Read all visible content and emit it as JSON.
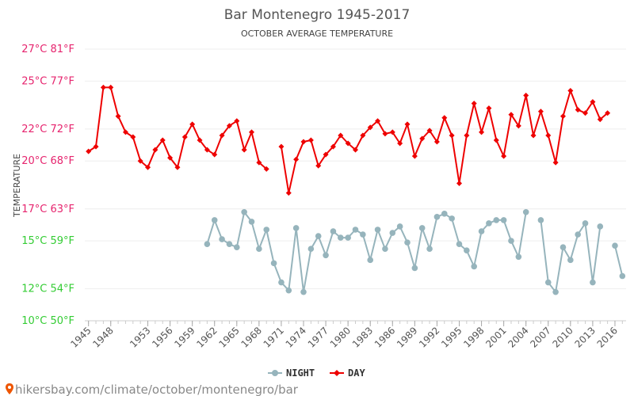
{
  "chart_data": {
    "type": "line",
    "title": "Bar Montenegro 1945-2017",
    "subtitle": "OCTOBER AVERAGE TEMPERATURE",
    "ylabel": "TEMPERATURE",
    "xlabel": "",
    "ylim": [
      10,
      27
    ],
    "xlim": [
      1944.5,
      2017.5
    ],
    "grid": "horizontal",
    "legend_position": "bottom-center",
    "y_ticks": [
      {
        "value": 10,
        "label": "10°C 50°F",
        "color": "#33cc33"
      },
      {
        "value": 12,
        "label": "12°C 54°F",
        "color": "#33cc33"
      },
      {
        "value": 15,
        "label": "15°C 59°F",
        "color": "#33cc33"
      },
      {
        "value": 17,
        "label": "17°C 63°F",
        "color": "#e6246e"
      },
      {
        "value": 20,
        "label": "20°C 68°F",
        "color": "#e6246e"
      },
      {
        "value": 22,
        "label": "22°C 72°F",
        "color": "#e6246e"
      },
      {
        "value": 25,
        "label": "25°C 77°F",
        "color": "#e6246e"
      },
      {
        "value": 27,
        "label": "27°C 81°F",
        "color": "#e6246e"
      }
    ],
    "x_ticks": [
      1945,
      1948,
      1953,
      1956,
      1959,
      1962,
      1965,
      1968,
      1971,
      1974,
      1977,
      1980,
      1983,
      1986,
      1989,
      1992,
      1995,
      1998,
      2001,
      2004,
      2007,
      2010,
      2013,
      2016
    ],
    "series": [
      {
        "name": "NIGHT",
        "color": "#96b4bc",
        "points": [
          [
            1961,
            14.8
          ],
          [
            1962,
            16.3
          ],
          [
            1963,
            15.1
          ],
          [
            1964,
            14.8
          ],
          [
            1965,
            14.6
          ],
          [
            1966,
            16.8
          ],
          [
            1967,
            16.2
          ],
          [
            1968,
            14.5
          ],
          [
            1969,
            15.7
          ],
          [
            1970,
            13.6
          ],
          [
            1971,
            12.4
          ],
          [
            1972,
            11.9
          ],
          [
            1973,
            15.8
          ],
          [
            1974,
            11.8
          ],
          [
            1975,
            14.5
          ],
          [
            1976,
            15.3
          ],
          [
            1977,
            14.1
          ],
          [
            1978,
            15.6
          ],
          [
            1979,
            15.2
          ],
          [
            1980,
            15.2
          ],
          [
            1981,
            15.7
          ],
          [
            1982,
            15.4
          ],
          [
            1983,
            13.8
          ],
          [
            1984,
            15.7
          ],
          [
            1985,
            14.5
          ],
          [
            1986,
            15.5
          ],
          [
            1987,
            15.9
          ],
          [
            1988,
            14.9
          ],
          [
            1989,
            13.3
          ],
          [
            1990,
            15.8
          ],
          [
            1991,
            14.5
          ],
          [
            1992,
            16.5
          ],
          [
            1993,
            16.7
          ],
          [
            1994,
            16.4
          ],
          [
            1995,
            14.8
          ],
          [
            1996,
            14.4
          ],
          [
            1997,
            13.4
          ],
          [
            1998,
            15.6
          ],
          [
            1999,
            16.1
          ],
          [
            2000,
            16.3
          ],
          [
            2001,
            16.3
          ],
          [
            2002,
            15.0
          ],
          [
            2003,
            14.0
          ],
          [
            2004,
            16.8
          ],
          [
            2006,
            16.3
          ],
          [
            2007,
            12.4
          ],
          [
            2008,
            11.8
          ],
          [
            2009,
            14.6
          ],
          [
            2010,
            13.8
          ],
          [
            2011,
            15.4
          ],
          [
            2012,
            16.1
          ],
          [
            2013,
            12.4
          ],
          [
            2014,
            15.9
          ],
          [
            2016,
            14.7
          ],
          [
            2017,
            12.8
          ]
        ]
      },
      {
        "name": "DAY",
        "color": "#ee0000",
        "points": [
          [
            1945,
            20.6
          ],
          [
            1946,
            20.9
          ],
          [
            1947,
            24.6
          ],
          [
            1948,
            24.6
          ],
          [
            1949,
            22.8
          ],
          [
            1950,
            21.8
          ],
          [
            1951,
            21.5
          ],
          [
            1952,
            20.0
          ],
          [
            1953,
            19.6
          ],
          [
            1954,
            20.7
          ],
          [
            1955,
            21.3
          ],
          [
            1956,
            20.2
          ],
          [
            1957,
            19.6
          ],
          [
            1958,
            21.5
          ],
          [
            1959,
            22.3
          ],
          [
            1960,
            21.3
          ],
          [
            1961,
            20.7
          ],
          [
            1962,
            20.4
          ],
          [
            1963,
            21.6
          ],
          [
            1964,
            22.2
          ],
          [
            1965,
            22.5
          ],
          [
            1966,
            20.7
          ],
          [
            1967,
            21.8
          ],
          [
            1968,
            19.9
          ],
          [
            1969,
            19.5
          ],
          [
            1971,
            20.9
          ],
          [
            1972,
            18.0
          ],
          [
            1973,
            20.1
          ],
          [
            1974,
            21.2
          ],
          [
            1975,
            21.3
          ],
          [
            1976,
            19.7
          ],
          [
            1977,
            20.4
          ],
          [
            1978,
            20.9
          ],
          [
            1979,
            21.6
          ],
          [
            1980,
            21.1
          ],
          [
            1981,
            20.7
          ],
          [
            1982,
            21.6
          ],
          [
            1983,
            22.1
          ],
          [
            1984,
            22.5
          ],
          [
            1985,
            21.7
          ],
          [
            1986,
            21.8
          ],
          [
            1987,
            21.1
          ],
          [
            1988,
            22.3
          ],
          [
            1989,
            20.3
          ],
          [
            1990,
            21.4
          ],
          [
            1991,
            21.9
          ],
          [
            1992,
            21.2
          ],
          [
            1993,
            22.7
          ],
          [
            1994,
            21.6
          ],
          [
            1995,
            18.6
          ],
          [
            1996,
            21.6
          ],
          [
            1997,
            23.6
          ],
          [
            1998,
            21.8
          ],
          [
            1999,
            23.3
          ],
          [
            2000,
            21.3
          ],
          [
            2001,
            20.3
          ],
          [
            2002,
            22.9
          ],
          [
            2003,
            22.2
          ],
          [
            2004,
            24.1
          ],
          [
            2005,
            21.6
          ],
          [
            2006,
            23.1
          ],
          [
            2007,
            21.6
          ],
          [
            2008,
            19.9
          ],
          [
            2009,
            22.8
          ],
          [
            2010,
            24.4
          ],
          [
            2011,
            23.2
          ],
          [
            2012,
            23.0
          ],
          [
            2013,
            23.7
          ],
          [
            2014,
            22.6
          ],
          [
            2015,
            23.0
          ]
        ]
      }
    ],
    "source": "hikersbay.com/climate/october/montenegro/bar",
    "axis_color": "#cccccc",
    "grid_color": "#eeeeee"
  }
}
